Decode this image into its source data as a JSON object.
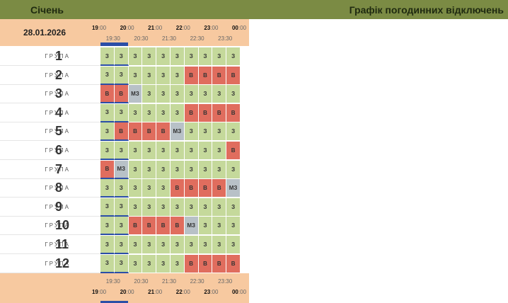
{
  "header": {
    "month": "Січень",
    "title": "Графік погодинних відключень"
  },
  "date": "28.01.2026",
  "group_label": "ГРУПА",
  "hours": [
    "19",
    "20",
    "21",
    "22",
    "23",
    "00"
  ],
  "minutes": ":00",
  "half_hours": [
    "19:30",
    "20:30",
    "21:30",
    "22:30",
    "23:30"
  ],
  "legend": {
    "z": "З",
    "v": "В",
    "mz": "МЗ"
  },
  "groups": [
    {
      "num": "1",
      "slots": [
        "z",
        "z",
        "z",
        "z",
        "z",
        "z",
        "z",
        "z",
        "z",
        "z"
      ]
    },
    {
      "num": "2",
      "slots": [
        "z",
        "z",
        "z",
        "z",
        "z",
        "z",
        "v",
        "v",
        "v",
        "v"
      ]
    },
    {
      "num": "3",
      "slots": [
        "v",
        "v",
        "mz",
        "z",
        "z",
        "z",
        "z",
        "z",
        "z",
        "z"
      ]
    },
    {
      "num": "4",
      "slots": [
        "z",
        "z",
        "z",
        "z",
        "z",
        "z",
        "v",
        "v",
        "v",
        "v"
      ]
    },
    {
      "num": "5",
      "slots": [
        "z",
        "v",
        "v",
        "v",
        "v",
        "mz",
        "z",
        "z",
        "z",
        "z"
      ]
    },
    {
      "num": "6",
      "slots": [
        "z",
        "z",
        "z",
        "z",
        "z",
        "z",
        "z",
        "z",
        "z",
        "v"
      ]
    },
    {
      "num": "7",
      "slots": [
        "v",
        "mz",
        "z",
        "z",
        "z",
        "z",
        "z",
        "z",
        "z",
        "z"
      ]
    },
    {
      "num": "8",
      "slots": [
        "z",
        "z",
        "z",
        "z",
        "z",
        "v",
        "v",
        "v",
        "v",
        "mz"
      ]
    },
    {
      "num": "9",
      "slots": [
        "z",
        "z",
        "z",
        "z",
        "z",
        "z",
        "z",
        "z",
        "z",
        "z"
      ]
    },
    {
      "num": "10",
      "slots": [
        "z",
        "z",
        "v",
        "v",
        "v",
        "v",
        "mz",
        "z",
        "z",
        "z"
      ]
    },
    {
      "num": "11",
      "slots": [
        "z",
        "z",
        "z",
        "z",
        "z",
        "z",
        "z",
        "z",
        "z",
        "z"
      ]
    },
    {
      "num": "12",
      "slots": [
        "z",
        "z",
        "z",
        "z",
        "z",
        "z",
        "v",
        "v",
        "v",
        "v"
      ]
    }
  ]
}
